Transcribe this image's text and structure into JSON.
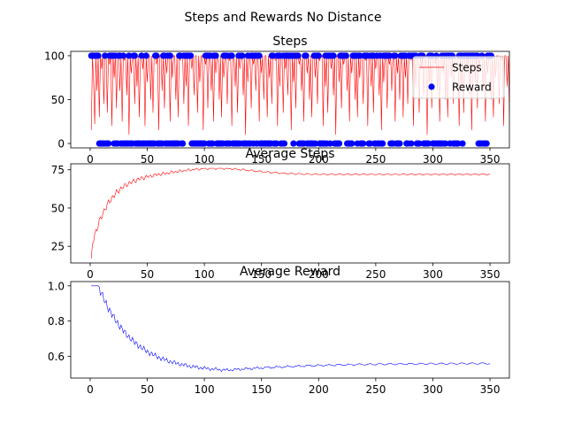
{
  "figure": {
    "suptitle": "Steps and Rewards No Distance"
  },
  "chart_data": [
    {
      "type": "line",
      "title": "Steps",
      "xlim": [
        -17,
        367
      ],
      "ylim": [
        -5,
        105
      ],
      "xticks": [
        0,
        50,
        100,
        150,
        200,
        250,
        300,
        350
      ],
      "yticks": [
        0,
        50,
        100
      ],
      "legend": {
        "position": "top-right",
        "entries": [
          "Steps",
          "Reward"
        ]
      },
      "series": [
        {
          "name": "Steps",
          "kind": "line",
          "color": "#ff0000",
          "values": [
            15,
            100,
            70,
            22,
            100,
            60,
            100,
            30,
            100,
            85,
            100,
            45,
            100,
            100,
            35,
            100,
            90,
            100,
            20,
            100,
            75,
            100,
            40,
            100,
            100,
            60,
            100,
            25,
            100,
            95,
            100,
            55,
            100,
            10,
            100,
            80,
            100,
            100,
            45,
            100,
            65,
            100,
            30,
            100,
            100,
            85,
            100,
            20,
            100,
            70,
            100,
            100,
            50,
            100,
            35,
            100,
            100,
            90,
            100,
            15,
            100,
            100,
            60,
            100,
            40,
            100,
            80,
            100,
            100,
            25,
            100,
            75,
            100,
            100,
            50,
            100,
            30,
            100,
            95,
            100,
            100,
            45,
            100,
            65,
            100,
            20,
            100,
            100,
            85,
            100,
            55,
            100,
            100,
            35,
            100,
            70,
            100,
            100,
            15,
            100,
            90,
            100,
            40,
            100,
            100,
            60,
            100,
            25,
            100,
            80,
            100,
            100,
            50,
            100,
            30,
            100,
            75,
            100,
            100,
            45,
            100,
            95,
            100,
            20,
            100,
            100,
            65,
            100,
            35,
            100,
            85,
            100,
            100,
            55,
            100,
            10,
            100,
            70,
            100,
            100,
            40,
            100,
            90,
            100,
            60,
            100,
            100,
            25,
            100,
            80,
            100,
            50,
            100,
            100,
            30,
            100,
            75,
            100,
            45,
            100,
            100,
            95,
            100,
            20,
            100,
            65,
            100,
            100,
            35,
            100,
            85,
            100,
            55,
            100,
            100,
            15,
            100,
            70,
            100,
            40,
            100,
            100,
            90,
            100,
            60,
            100,
            25,
            100,
            100,
            80,
            100,
            50,
            100,
            30,
            100,
            100,
            75,
            100,
            45,
            100,
            95,
            100,
            100,
            20,
            100,
            65,
            100,
            35,
            100,
            100,
            85,
            100,
            55,
            100,
            10,
            100,
            100,
            70,
            100,
            40,
            100,
            90,
            100,
            100,
            60,
            100,
            25,
            100,
            80,
            100,
            100,
            50,
            100,
            30,
            100,
            75,
            100,
            100,
            45,
            100,
            95,
            100,
            20,
            100,
            100,
            65,
            100,
            35,
            100,
            85,
            100,
            100,
            55,
            100,
            15,
            100,
            70,
            100,
            100,
            40,
            100,
            90,
            100,
            60,
            100,
            100,
            25,
            100,
            80,
            100,
            50,
            100,
            100,
            30,
            100,
            75,
            100,
            45,
            100,
            100,
            95,
            100,
            20,
            100,
            65,
            100,
            100,
            35,
            100,
            85,
            100,
            55,
            100,
            100,
            10,
            100,
            70,
            100,
            40,
            100,
            100,
            90,
            100,
            60,
            100,
            25,
            100,
            100,
            80,
            100,
            50,
            100,
            30,
            100,
            100,
            75,
            100,
            45,
            100,
            95,
            100,
            100,
            20,
            100,
            65,
            100,
            35,
            100,
            100,
            85,
            100,
            55,
            100,
            15,
            100,
            100,
            70,
            100,
            40,
            100,
            90,
            100,
            100,
            60,
            100,
            25,
            100,
            80,
            100,
            100,
            50,
            100,
            30,
            100,
            75,
            100,
            100,
            45,
            100,
            95,
            100,
            20,
            100,
            100,
            65,
            100,
            35,
            100,
            85,
            100,
            100,
            25
          ]
        },
        {
          "name": "Reward",
          "kind": "scatter",
          "color": "#0000ff",
          "values": [
            1,
            1,
            1,
            1,
            1,
            1,
            1,
            0,
            0,
            0,
            0,
            0,
            1,
            0,
            0,
            0,
            1,
            1,
            1,
            1,
            0,
            1,
            0,
            0,
            1,
            1,
            0,
            0,
            1,
            0,
            0,
            0,
            0,
            1,
            0,
            0,
            0,
            1,
            1,
            0,
            0,
            0,
            0,
            0,
            1,
            0,
            0,
            0,
            1,
            0,
            0,
            0,
            0,
            0,
            0,
            0,
            1,
            1,
            0,
            0,
            0,
            0,
            0,
            1,
            1,
            0,
            0,
            1,
            0,
            1,
            0,
            0,
            0,
            0,
            0,
            0,
            0,
            1,
            1,
            0,
            0,
            1,
            1,
            1,
            1,
            1,
            1,
            1,
            0,
            0,
            0,
            0,
            0,
            0,
            0,
            0,
            0,
            0,
            0,
            0,
            1,
            1,
            1,
            0,
            1,
            0,
            0,
            1,
            1,
            1,
            0,
            0,
            0,
            0,
            0,
            0,
            1,
            1,
            0,
            1,
            0,
            0,
            1,
            1,
            0,
            0,
            0,
            0,
            0,
            1,
            0,
            1,
            1,
            0,
            0,
            0,
            0,
            1,
            0,
            0,
            1,
            1,
            0,
            1,
            1,
            0,
            1,
            1,
            0,
            0,
            0,
            0,
            0,
            0,
            0,
            0,
            0,
            0,
            1,
            1,
            0,
            0,
            0,
            1,
            1,
            1,
            0,
            0,
            1,
            0,
            1,
            1,
            1,
            1,
            1,
            1,
            1,
            0,
            1,
            1,
            1,
            1,
            0,
            0,
            0,
            0,
            0,
            1,
            1,
            0,
            0,
            0,
            0,
            0,
            0,
            1,
            0,
            1,
            1,
            1,
            0,
            0,
            0,
            0,
            0,
            1,
            0,
            1,
            1,
            0,
            1,
            1,
            1,
            0,
            0,
            0,
            0,
            0,
            1,
            1,
            1,
            1,
            1,
            1,
            0,
            0,
            0,
            0,
            0,
            1,
            1,
            1,
            1,
            0,
            1,
            1,
            0,
            0,
            0,
            1,
            1,
            1,
            1,
            0,
            0,
            1,
            1,
            1,
            0,
            0,
            1,
            0,
            0,
            1,
            0,
            0,
            1,
            1,
            1,
            1,
            1,
            1,
            0,
            0,
            0,
            1,
            1,
            0,
            0,
            0,
            0,
            1,
            1,
            1,
            1,
            1,
            0,
            0,
            1,
            1,
            0,
            1,
            1,
            1,
            1,
            0,
            0,
            0,
            1,
            1,
            1,
            0,
            0,
            0,
            0,
            0,
            1,
            1,
            1,
            0,
            0,
            0,
            1,
            0,
            0,
            0,
            0,
            1,
            0,
            1,
            0,
            1,
            1,
            1,
            0,
            1,
            1,
            0,
            0,
            0,
            0,
            0,
            1,
            1,
            1,
            0,
            1,
            1,
            1,
            1,
            1,
            1,
            1,
            1,
            1,
            1,
            1,
            1,
            1,
            0,
            0,
            0,
            1,
            0,
            0,
            0,
            0,
            1,
            1,
            1,
            1
          ]
        }
      ]
    },
    {
      "type": "line",
      "title": "Average Steps",
      "xlim": [
        -17,
        367
      ],
      "ylim": [
        14.1,
        78.9
      ],
      "xticks": [
        0,
        50,
        100,
        150,
        200,
        250,
        300,
        350
      ],
      "yticks": [
        25,
        50,
        75
      ],
      "series": [
        {
          "color": "#ff0000"
        }
      ]
    },
    {
      "type": "line",
      "title": "Average Reward",
      "xlim": [
        -17,
        367
      ],
      "ylim": [
        0.476,
        1.024
      ],
      "xticks": [
        0,
        50,
        100,
        150,
        200,
        250,
        300,
        350
      ],
      "yticks": [
        "0.6",
        "0.8",
        "1.0"
      ],
      "series": [
        {
          "color": "#0000ff"
        }
      ]
    }
  ]
}
